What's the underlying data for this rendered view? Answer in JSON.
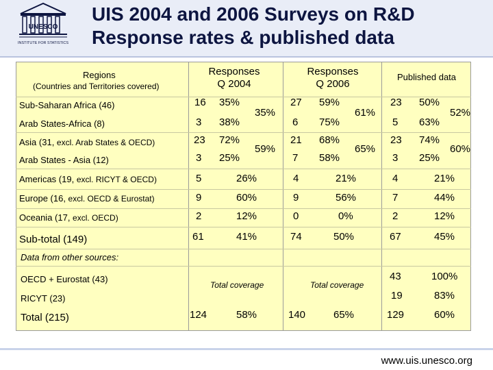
{
  "title_line1": "UIS 2004 and 2006 Surveys on R&D",
  "title_line2": "Response rates & published data",
  "logo": {
    "text": "UNESCO",
    "subtext": "INSTITUTE FOR STATISTICS"
  },
  "headers": {
    "regions": "Regions",
    "regions_sub": "(Countries and Territories covered)",
    "q2004": "Responses Q 2004",
    "q2006": "Responses Q 2006",
    "published": "Published data"
  },
  "rows": {
    "ssa": {
      "label": "Sub-Saharan Africa (46)",
      "r04": "16",
      "p04": "35%",
      "r06": "27",
      "p06": "59%",
      "pub": "23",
      "ppub": "50%"
    },
    "asaf": {
      "label": "Arab States-Africa (8)",
      "r04": "3",
      "p04": "38%",
      "r06": "6",
      "p06": "75%",
      "pub": "5",
      "ppub": "63%"
    },
    "africa_group": {
      "p04": "35%",
      "p06": "61%",
      "ppub": "52%"
    },
    "asia": {
      "label_main": "Asia (31, ",
      "label_sub": "excl. Arab States & OECD)",
      "r04": "23",
      "p04": "72%",
      "r06": "21",
      "p06": "68%",
      "pub": "23",
      "ppub": "74%"
    },
    "asas": {
      "label": "Arab States - Asia (12)",
      "r04": "3",
      "p04": "25%",
      "r06": "7",
      "p06": "58%",
      "pub": "3",
      "ppub": "25%"
    },
    "asia_group": {
      "p04": "59%",
      "p06": "65%",
      "ppub": "60%"
    },
    "americas": {
      "label_main": "Americas (19, ",
      "label_sub": "excl. RICYT & OECD)",
      "r04": "5",
      "p04": "26%",
      "r06": "4",
      "p06": "21%",
      "pub": "4",
      "ppub": "21%"
    },
    "europe": {
      "label_main": "Europe (16, ",
      "label_sub": "excl. OECD & Eurostat)",
      "r04": "9",
      "p04": "60%",
      "r06": "9",
      "p06": "56%",
      "pub": "7",
      "ppub": "44%"
    },
    "oceania": {
      "label_main": "Oceania (17, ",
      "label_sub": "excl. OECD)",
      "r04": "2",
      "p04": "12%",
      "r06": "0",
      "p06": "0%",
      "pub": "2",
      "ppub": "12%"
    },
    "subtotal": {
      "label": "Sub-total (149)",
      "r04": "61",
      "p04": "41%",
      "r06": "74",
      "p06": "50%",
      "pub": "67",
      "ppub": "45%"
    }
  },
  "other_sources": "Data from other sources:",
  "oecd": {
    "label": "OECD + Eurostat (43)",
    "pub": "43",
    "ppub": "100%"
  },
  "ricyt": {
    "label": "RICYT (23)",
    "pub": "19",
    "ppub": "83%"
  },
  "total_coverage_2004": "Total coverage",
  "total_coverage_2006": "Total coverage",
  "total": {
    "label": "Total (215)",
    "r04": "124",
    "p04": "58%",
    "r06": "140",
    "p06": "65%",
    "pub": "129",
    "ppub": "60%"
  },
  "footer_url": "www.uis.unesco.org"
}
